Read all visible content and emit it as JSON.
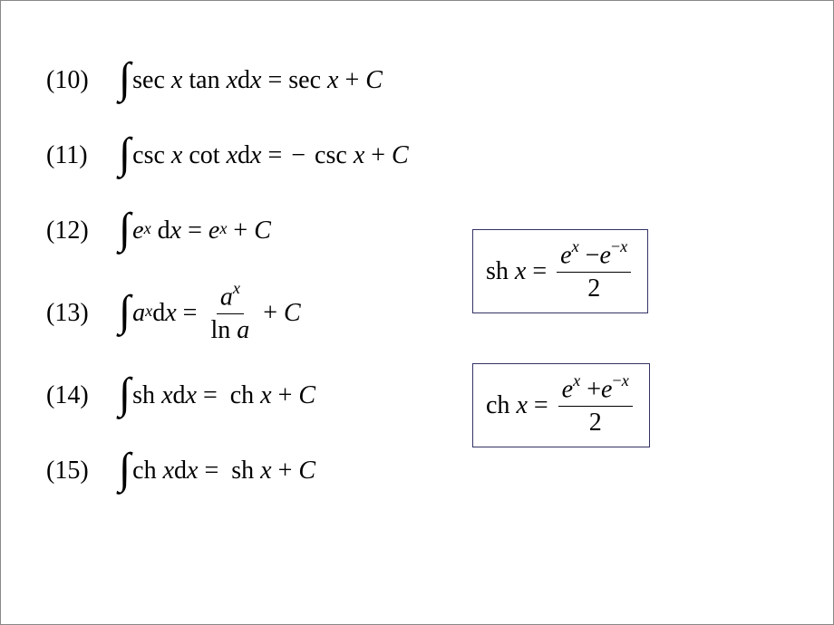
{
  "formulas": {
    "f10": {
      "num": "(10)",
      "lhs_fn": "sec",
      "lhs_fn2": "tan",
      "rhs_fn": "sec",
      "const": "C"
    },
    "f11": {
      "num": "(11)",
      "lhs_fn": "csc",
      "lhs_fn2": "cot",
      "rhs_fn": "csc",
      "const": "C"
    },
    "f12": {
      "num": "(12)",
      "base": "e",
      "const": "C"
    },
    "f13": {
      "num": "(13)",
      "base": "a",
      "denom": "ln",
      "const": "C"
    },
    "f14": {
      "num": "(14)",
      "lhs_fn": "sh",
      "rhs_fn": "ch",
      "const": "C"
    },
    "f15": {
      "num": "(15)",
      "lhs_fn": "ch",
      "rhs_fn": "sh",
      "const": "C"
    }
  },
  "boxes": {
    "b1": {
      "fn": "sh",
      "var": "x",
      "base": "e",
      "denom": "2",
      "op": "−"
    },
    "b2": {
      "fn": "ch",
      "var": "x",
      "base": "e",
      "denom": "2",
      "op": "+"
    }
  },
  "vars": {
    "x": "x",
    "dx": "dx",
    "d": "d"
  },
  "colors": {
    "bg": "#ffffff",
    "text": "#000000",
    "box_border": "#333366"
  }
}
